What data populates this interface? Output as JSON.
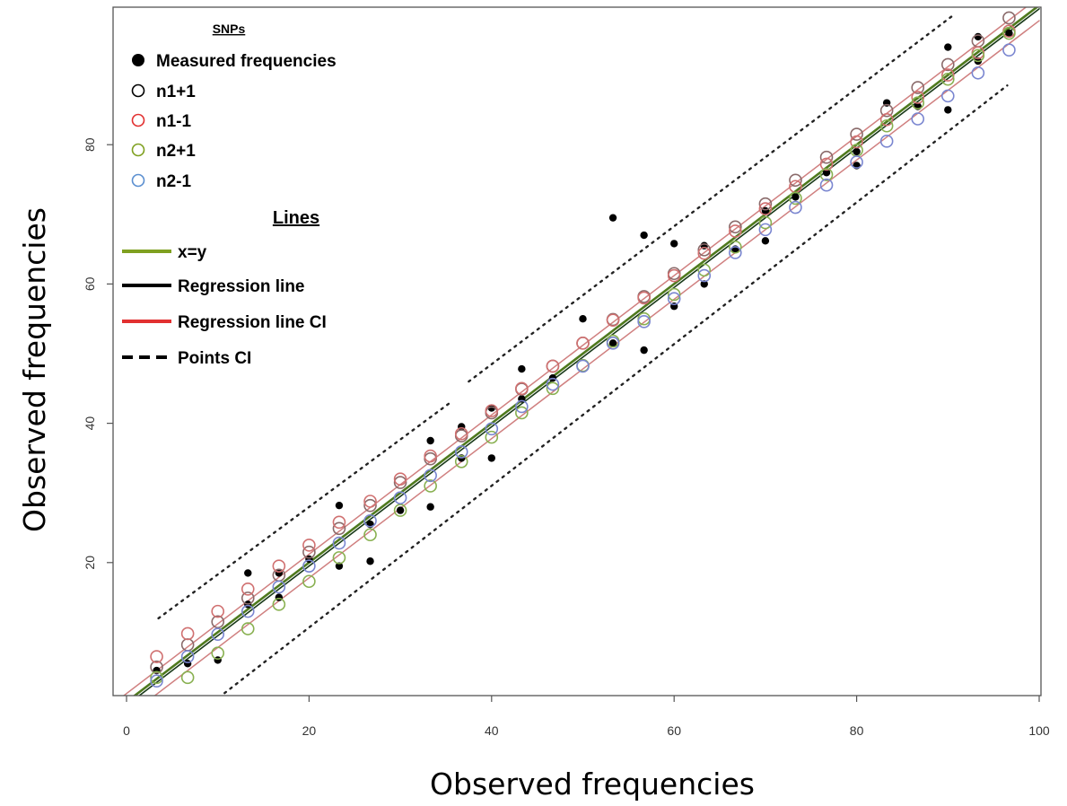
{
  "chart_data": {
    "type": "scatter",
    "xlabel": "Observed  frequencies",
    "ylabel": "Observed  frequencies",
    "xlim": [
      0,
      100
    ],
    "ylim": [
      0,
      100
    ],
    "xticks": [
      0,
      20,
      40,
      60,
      80,
      100
    ],
    "yticks": [
      20,
      40,
      60,
      80
    ],
    "grid": false,
    "legend_placement": "top-left",
    "legend": {
      "points_heading": "SNPs",
      "points": [
        {
          "label": "Measured frequencies",
          "marker": "filled-circle",
          "color": "#000000"
        },
        {
          "label": "n1+1",
          "marker": "open-circle",
          "color": "#000000"
        },
        {
          "label": "n1-1",
          "marker": "open-circle",
          "color": "#e23030"
        },
        {
          "label": "n2+1",
          "marker": "open-circle",
          "color": "#7fa020"
        },
        {
          "label": "n2-1",
          "marker": "open-circle",
          "color": "#5b8fd0"
        }
      ],
      "lines_heading": "Lines",
      "lines": [
        {
          "label": "x=y",
          "style": "solid",
          "color": "#7fa020"
        },
        {
          "label": "Regression line",
          "style": "solid",
          "color": "#000000"
        },
        {
          "label": "Regression line CI",
          "style": "solid",
          "color": "#e23030"
        },
        {
          "label": "Points CI",
          "style": "dashed",
          "color": "#000000"
        }
      ]
    },
    "lines": [
      {
        "name": "x=y",
        "x": [
          0,
          100
        ],
        "y": [
          0,
          100
        ]
      },
      {
        "name": "Regression line",
        "x": [
          0.5,
          100
        ],
        "y": [
          0,
          99.5
        ]
      },
      {
        "name": "Regression line CI upper",
        "x": [
          -1.2,
          100
        ],
        "y": [
          0,
          101.2
        ]
      },
      {
        "name": "Regression line CI lower",
        "x": [
          2.2,
          100
        ],
        "y": [
          0,
          97.8
        ]
      },
      {
        "name": "Points CI upper",
        "x": [
          3.5,
          35.5
        ],
        "y": [
          12.0,
          43.0
        ]
      },
      {
        "name": "Points CI upper",
        "x": [
          37.5,
          90.5
        ],
        "y": [
          46.0,
          98.5
        ]
      },
      {
        "name": "Points CI lower",
        "x": [
          9.5,
          96.5
        ],
        "y": [
          0,
          88.5
        ]
      }
    ],
    "series": [
      {
        "name": "Measured frequencies",
        "x": [
          3.3,
          6.7,
          10,
          13.3,
          13.3,
          16.7,
          16.7,
          20,
          23.3,
          23.3,
          26.7,
          26.7,
          30,
          33.3,
          33.3,
          36.7,
          36.7,
          40,
          40,
          43.3,
          43.3,
          46.7,
          50,
          53.3,
          53.3,
          56.7,
          56.7,
          60,
          60,
          63.3,
          63.3,
          66.7,
          70,
          70,
          73.3,
          76.7,
          80,
          80,
          83.3,
          86.7,
          90,
          90,
          93.3,
          93.3,
          96.7
        ],
        "y": [
          4.5,
          5.5,
          6,
          18.5,
          14,
          18.5,
          15,
          20.5,
          28.2,
          19.5,
          25.5,
          20.2,
          27.5,
          37.5,
          28,
          39.5,
          35,
          42.2,
          35,
          47.8,
          43.5,
          46.5,
          55,
          69.5,
          51.5,
          67,
          50.5,
          65.8,
          56.8,
          65.5,
          60,
          65,
          70.5,
          66.2,
          72.5,
          76,
          79,
          77,
          86,
          85.5,
          94,
          85,
          95.5,
          92,
          96
        ]
      },
      {
        "name": "n1+1",
        "x": [
          3.3,
          6.7,
          10,
          13.3,
          16.7,
          20,
          23.3,
          26.7,
          30,
          33.3,
          36.7,
          40,
          43.3,
          46.7,
          50,
          53.3,
          56.7,
          60,
          63.3,
          66.7,
          70,
          73.3,
          76.7,
          80,
          83.3,
          86.7,
          90,
          93.3,
          96.7
        ],
        "y": [
          5,
          8.2,
          11.5,
          14.9,
          18.2,
          21.5,
          24.9,
          28.2,
          31.5,
          34.9,
          38.2,
          41.5,
          44.9,
          48.2,
          51.5,
          54.9,
          58.2,
          61.5,
          64.9,
          68.2,
          71.5,
          74.9,
          78.2,
          81.5,
          84.9,
          88.2,
          91.5,
          94.9,
          98.2
        ]
      },
      {
        "name": "n1-1",
        "x": [
          3.3,
          6.7,
          10,
          13.3,
          16.7,
          20,
          23.3,
          26.7,
          30,
          33.3,
          36.7,
          40,
          43.3,
          46.7,
          50,
          53.3,
          56.7,
          60,
          63.3,
          66.7,
          70,
          73.3,
          76.7,
          80,
          83.3,
          86.7,
          90,
          93.3,
          96.7
        ],
        "y": [
          6.5,
          9.8,
          13,
          16.2,
          19.5,
          22.5,
          25.8,
          28.8,
          32,
          35.3,
          38.5,
          41.8,
          45,
          48.2,
          51.5,
          54.8,
          58,
          61.2,
          64.4,
          67.6,
          70.8,
          74,
          77.2,
          80.4,
          83.6,
          86.8,
          90,
          93.2,
          96.3
        ]
      },
      {
        "name": "n2+1",
        "x": [
          3.3,
          6.7,
          10,
          13.3,
          16.7,
          20,
          23.3,
          26.7,
          30,
          33.3,
          36.7,
          40,
          43.3,
          46.7,
          50,
          53.3,
          56.7,
          60,
          63.3,
          66.7,
          70,
          73.3,
          76.7,
          80,
          83.3,
          86.7,
          90,
          93.3,
          96.7
        ],
        "y": [
          3.5,
          3.5,
          7,
          10.5,
          14,
          17.3,
          20.7,
          24,
          27.5,
          31,
          34.5,
          38,
          41.5,
          45,
          48.3,
          51.8,
          55,
          58.5,
          62,
          65.3,
          68.8,
          72.3,
          75.7,
          79.2,
          82.7,
          86,
          89.4,
          92.8,
          96
        ]
      },
      {
        "name": "n2-1",
        "x": [
          3.3,
          6.7,
          10,
          13.3,
          16.7,
          20,
          23.3,
          26.7,
          30,
          33.3,
          36.7,
          40,
          43.3,
          46.7,
          50,
          53.3,
          56.7,
          60,
          63.3,
          66.7,
          70,
          73.3,
          76.7,
          80,
          83.3,
          86.7,
          90,
          93.3,
          96.7
        ],
        "y": [
          3,
          6.5,
          9.7,
          13,
          16.5,
          19.5,
          22.8,
          26,
          29.3,
          32.5,
          35.9,
          39.2,
          42.4,
          45.6,
          48.2,
          51.5,
          54.6,
          57.9,
          61.2,
          64.5,
          67.8,
          71,
          74.2,
          77.5,
          80.5,
          83.7,
          87,
          90.3,
          93.6
        ]
      }
    ]
  }
}
